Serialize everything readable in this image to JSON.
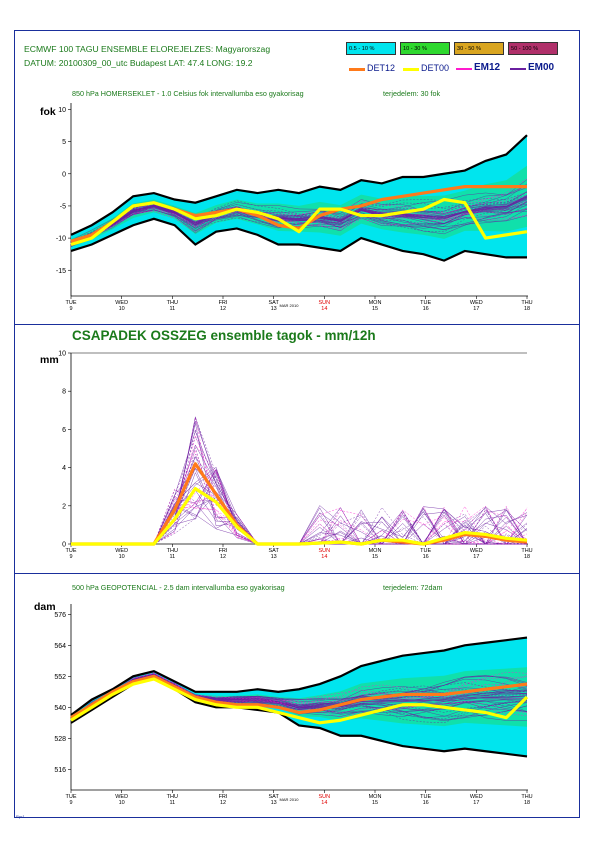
{
  "header": {
    "line1": "ECMWF 100 TAGU ENSEMBLE ELOREJELZES:  Magyarorszag",
    "line2": "DATUM: 20100309_00_utc  Budapest  LAT: 47.4  LONG: 19.2"
  },
  "legend": {
    "prob_boxes": [
      {
        "label": "0.5 - 10 %",
        "color": "#00e5ee"
      },
      {
        "label": "10 - 30 %",
        "color": "#2ed82e"
      },
      {
        "label": "30 - 50 %",
        "color": "#d9a520"
      },
      {
        "label": "50 - 100 %",
        "color": "#b0306a"
      }
    ],
    "lines": [
      {
        "label": "DET12",
        "color": "#ff7a1a"
      },
      {
        "label": "DET00",
        "color": "#ffff00"
      },
      {
        "label": "EM12",
        "color": "#ff1acd"
      },
      {
        "label": "EM00",
        "color": "#6a1fa0"
      }
    ]
  },
  "stamp": "Rpr1",
  "x_axis": {
    "days": [
      {
        "dow": "TUE",
        "day": "9",
        "sunday": false
      },
      {
        "dow": "WED",
        "day": "10",
        "sunday": false
      },
      {
        "dow": "THU",
        "day": "11",
        "sunday": false
      },
      {
        "dow": "FRI",
        "day": "12",
        "sunday": false
      },
      {
        "dow": "SAT",
        "day": "13",
        "sunday": false
      },
      {
        "dow": "SUN",
        "day": "14",
        "sunday": true
      },
      {
        "dow": "MON",
        "day": "15",
        "sunday": false
      },
      {
        "dow": "TUE",
        "day": "16",
        "sunday": false
      },
      {
        "dow": "WED",
        "day": "17",
        "sunday": false
      },
      {
        "dow": "THU",
        "day": "18",
        "sunday": false
      }
    ],
    "month_label": "MAR 2010"
  },
  "chart_data": [
    {
      "type": "area",
      "title": "850 hPa HOMERSEKLET - 1.0 Celsius fok intervallumba eso gyakorisag",
      "subtitle": "terjedelem: 30 fok",
      "ylabel": "fok",
      "ylim": [
        -19,
        11
      ],
      "yticks": [
        10,
        5,
        0,
        -5,
        -10,
        -15
      ],
      "band_outer": {
        "upper": [
          -9.5,
          -8,
          -6,
          -3.5,
          -3,
          -4,
          -4.5,
          -3.5,
          -2.5,
          -3,
          -2.5,
          -3,
          -2,
          -2.5,
          -1,
          -1.5,
          -0.5,
          -0.5,
          0,
          0.5,
          2,
          3,
          6
        ],
        "lower": [
          -12,
          -11,
          -9.5,
          -8,
          -7,
          -8,
          -11,
          -9,
          -8.5,
          -9.5,
          -11,
          -11,
          -11.5,
          -12,
          -10,
          -11,
          -12,
          -12.5,
          -13.5,
          -12,
          -12.5,
          -13,
          -13
        ]
      },
      "series": [
        {
          "name": "DET12",
          "color": "#ff7a1a",
          "values": [
            -10.5,
            -9.5,
            -7.5,
            -5,
            -4.5,
            -5.5,
            -6.5,
            -6,
            -5.5,
            -6.5,
            -8,
            -8.5,
            -6.5,
            -5.5,
            -5,
            -4,
            -3.5,
            -3,
            -2.5,
            -2,
            -2,
            -2,
            -2
          ]
        },
        {
          "name": "DET00",
          "color": "#ffff00",
          "values": [
            -11,
            -10,
            -7.5,
            -5,
            -4.5,
            -5.5,
            -7,
            -6.5,
            -5.5,
            -6,
            -7,
            -9,
            -5.5,
            -5.5,
            -6.5,
            -6.5,
            -6,
            -5.5,
            -4,
            -4.5,
            -10,
            -9.5,
            -9
          ]
        }
      ]
    },
    {
      "type": "line",
      "title": "CSAPADEK OSSZEG ensemble tagok - mm/12h",
      "ylabel": "mm",
      "ylim": [
        0,
        10
      ],
      "yticks": [
        10,
        8,
        6,
        4,
        2,
        0
      ],
      "series": [
        {
          "name": "DET12",
          "color": "#ff7a1a",
          "values": [
            0,
            0,
            0,
            0,
            0,
            1.8,
            4.2,
            2.6,
            1,
            0,
            0,
            0,
            0.05,
            0.1,
            0,
            0.2,
            0.1,
            0,
            0.2,
            0.5,
            0.4,
            0.2,
            0.1
          ]
        },
        {
          "name": "DET00",
          "color": "#ffff00",
          "values": [
            0,
            0,
            0,
            0,
            0,
            1.3,
            2.9,
            2.2,
            0.9,
            0,
            0,
            0,
            0.05,
            0.1,
            0,
            0.2,
            0.2,
            0,
            0.3,
            0.6,
            0.5,
            0.3,
            0.2
          ]
        }
      ]
    },
    {
      "type": "area",
      "title": "500 hPa GEOPOTENCIAL - 2.5 dam intervallumba eso gyakorisag",
      "subtitle": "terjedelem: 72dam",
      "ylabel": "dam",
      "ylim": [
        508,
        580
      ],
      "yticks": [
        576,
        564,
        552,
        540,
        528,
        516
      ],
      "band_outer": {
        "upper": [
          537,
          543,
          547,
          552,
          554,
          550,
          546,
          546,
          546,
          547,
          546,
          547,
          549,
          552,
          556,
          558,
          560,
          561,
          562,
          564,
          565,
          566,
          567
        ],
        "lower": [
          534,
          539,
          544,
          549,
          551,
          547,
          542,
          540,
          540,
          539,
          538,
          533,
          532,
          529,
          529,
          527,
          525,
          524,
          523,
          524,
          523,
          522,
          521
        ]
      },
      "series": [
        {
          "name": "DET12",
          "color": "#ff7a1a",
          "values": [
            536,
            541,
            546,
            550,
            552,
            548,
            544,
            542,
            541,
            541,
            540,
            538,
            539,
            541,
            543,
            544,
            545,
            545,
            545,
            546,
            547,
            548,
            549
          ]
        },
        {
          "name": "DET00",
          "color": "#ffff00",
          "values": [
            535,
            540,
            545,
            549,
            551,
            547,
            543,
            541,
            540,
            540,
            538,
            536,
            534,
            535,
            537,
            539,
            541,
            541,
            540,
            539,
            538,
            536,
            544
          ]
        }
      ]
    }
  ]
}
